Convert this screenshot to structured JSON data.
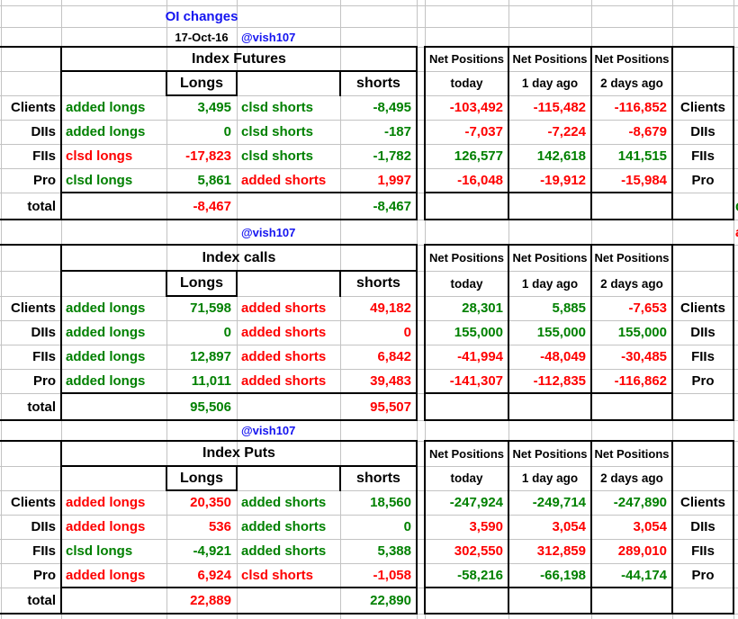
{
  "app": {
    "title": "OI changes",
    "date": "17-Oct-16",
    "handle": "@vish107"
  },
  "colors": {
    "green": "#008000",
    "red": "#fe0000",
    "blue": "#1414f0",
    "black": "#000000",
    "gridline": "#c3c3c3"
  },
  "net": {
    "header": "Net Positions",
    "cols": [
      "today",
      "1 day ago",
      "2 days ago"
    ]
  },
  "sections": [
    {
      "title": "Index Futures",
      "longs_label": "Longs",
      "shorts_label": "shorts",
      "total_label": "total",
      "rows": [
        {
          "label": "Clients",
          "long_action": "added longs",
          "long_action_color": "green",
          "long_value": "3,495",
          "long_value_color": "green",
          "short_action": "clsd shorts",
          "short_action_color": "green",
          "short_value": "-8,495",
          "short_value_color": "green",
          "net_today": "-103,492",
          "net_today_color": "red",
          "net_1d_ago": "-115,482",
          "net_1d_color": "red",
          "net_2d_ago": "-116,852",
          "net_2d_color": "red"
        },
        {
          "label": "DIIs",
          "long_action": "added longs",
          "long_action_color": "green",
          "long_value": "0",
          "long_value_color": "green",
          "short_action": "clsd shorts",
          "short_action_color": "green",
          "short_value": "-187",
          "short_value_color": "green",
          "net_today": "-7,037",
          "net_today_color": "red",
          "net_1d_ago": "-7,224",
          "net_1d_color": "red",
          "net_2d_ago": "-8,679",
          "net_2d_color": "red"
        },
        {
          "label": "FIIs",
          "long_action": "clsd longs",
          "long_action_color": "red",
          "long_value": "-17,823",
          "long_value_color": "red",
          "short_action": "clsd shorts",
          "short_action_color": "green",
          "short_value": "-1,782",
          "short_value_color": "green",
          "net_today": "126,577",
          "net_today_color": "green",
          "net_1d_ago": "142,618",
          "net_1d_color": "green",
          "net_2d_ago": "141,515",
          "net_2d_color": "green"
        },
        {
          "label": "Pro",
          "long_action": "clsd longs",
          "long_action_color": "green",
          "long_value": "5,861",
          "long_value_color": "green",
          "short_action": "added shorts",
          "short_action_color": "red",
          "short_value": "1,997",
          "short_value_color": "red",
          "net_today": "-16,048",
          "net_today_color": "red",
          "net_1d_ago": "-19,912",
          "net_1d_color": "red",
          "net_2d_ago": "-15,984",
          "net_2d_color": "red"
        }
      ],
      "total_long": "-8,467",
      "total_long_color": "red",
      "total_short": "-8,467",
      "total_short_color": "green"
    },
    {
      "title": "Index calls",
      "longs_label": "Longs",
      "shorts_label": "shorts",
      "total_label": "total",
      "rows": [
        {
          "label": "Clients",
          "long_action": "added longs",
          "long_action_color": "green",
          "long_value": "71,598",
          "long_value_color": "green",
          "short_action": "added shorts",
          "short_action_color": "red",
          "short_value": "49,182",
          "short_value_color": "red",
          "net_today": "28,301",
          "net_today_color": "green",
          "net_1d_ago": "5,885",
          "net_1d_color": "green",
          "net_2d_ago": "-7,653",
          "net_2d_color": "red"
        },
        {
          "label": "DIIs",
          "long_action": "added longs",
          "long_action_color": "green",
          "long_value": "0",
          "long_value_color": "green",
          "short_action": "added shorts",
          "short_action_color": "red",
          "short_value": "0",
          "short_value_color": "red",
          "net_today": "155,000",
          "net_today_color": "green",
          "net_1d_ago": "155,000",
          "net_1d_color": "green",
          "net_2d_ago": "155,000",
          "net_2d_color": "green"
        },
        {
          "label": "FIIs",
          "long_action": "added longs",
          "long_action_color": "green",
          "long_value": "12,897",
          "long_value_color": "green",
          "short_action": "added shorts",
          "short_action_color": "red",
          "short_value": "6,842",
          "short_value_color": "red",
          "net_today": "-41,994",
          "net_today_color": "red",
          "net_1d_ago": "-48,049",
          "net_1d_color": "red",
          "net_2d_ago": "-30,485",
          "net_2d_color": "red"
        },
        {
          "label": "Pro",
          "long_action": "added longs",
          "long_action_color": "green",
          "long_value": "11,011",
          "long_value_color": "green",
          "short_action": "added shorts",
          "short_action_color": "red",
          "short_value": "39,483",
          "short_value_color": "red",
          "net_today": "-141,307",
          "net_today_color": "red",
          "net_1d_ago": "-112,835",
          "net_1d_color": "red",
          "net_2d_ago": "-116,862",
          "net_2d_color": "red"
        }
      ],
      "total_long": "95,506",
      "total_long_color": "green",
      "total_short": "95,507",
      "total_short_color": "red"
    },
    {
      "title": "Index Puts",
      "longs_label": "Longs",
      "shorts_label": "shorts",
      "total_label": "total",
      "rows": [
        {
          "label": "Clients",
          "long_action": "added longs",
          "long_action_color": "red",
          "long_value": "20,350",
          "long_value_color": "red",
          "short_action": "added shorts",
          "short_action_color": "green",
          "short_value": "18,560",
          "short_value_color": "green",
          "net_today": "-247,924",
          "net_today_color": "green",
          "net_1d_ago": "-249,714",
          "net_1d_color": "green",
          "net_2d_ago": "-247,890",
          "net_2d_color": "green"
        },
        {
          "label": "DIIs",
          "long_action": "added longs",
          "long_action_color": "red",
          "long_value": "536",
          "long_value_color": "red",
          "short_action": "added shorts",
          "short_action_color": "green",
          "short_value": "0",
          "short_value_color": "green",
          "net_today": "3,590",
          "net_today_color": "red",
          "net_1d_ago": "3,054",
          "net_1d_color": "red",
          "net_2d_ago": "3,054",
          "net_2d_color": "red"
        },
        {
          "label": "FIIs",
          "long_action": "clsd longs",
          "long_action_color": "green",
          "long_value": "-4,921",
          "long_value_color": "green",
          "short_action": "added shorts",
          "short_action_color": "green",
          "short_value": "5,388",
          "short_value_color": "green",
          "net_today": "302,550",
          "net_today_color": "red",
          "net_1d_ago": "312,859",
          "net_1d_color": "red",
          "net_2d_ago": "289,010",
          "net_2d_color": "red"
        },
        {
          "label": "Pro",
          "long_action": "added longs",
          "long_action_color": "red",
          "long_value": "6,924",
          "long_value_color": "red",
          "short_action": "clsd shorts",
          "short_action_color": "red",
          "short_value": "-1,058",
          "short_value_color": "red",
          "net_today": "-58,216",
          "net_today_color": "green",
          "net_1d_ago": "-66,198",
          "net_1d_color": "green",
          "net_2d_ago": "-44,174",
          "net_2d_color": "green"
        }
      ],
      "total_long": "22,889",
      "total_long_color": "red",
      "total_short": "22,890",
      "total_short_color": "green"
    }
  ],
  "edge_fragments": [
    {
      "text": "C",
      "color": "green"
    },
    {
      "text": "a",
      "color": "red"
    }
  ]
}
